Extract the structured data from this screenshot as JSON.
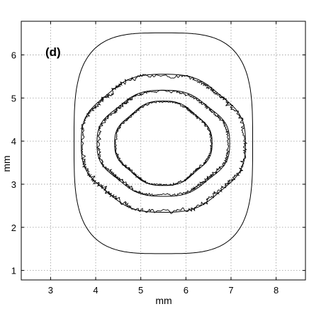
{
  "chart_data": {
    "type": "line",
    "title": "",
    "panel_label": "(d)",
    "xlabel": "mm",
    "ylabel": "mm",
    "xlim": [
      2.35,
      8.65
    ],
    "ylim": [
      0.78,
      6.78
    ],
    "xticks": [
      3,
      4,
      5,
      6,
      7,
      8
    ],
    "yticks": [
      1,
      2,
      3,
      4,
      5,
      6
    ],
    "grid": true,
    "center": [
      5.5,
      3.95
    ],
    "smooth_contours": [
      {
        "id": "smooth-outer",
        "a": 1.98,
        "b": 2.56,
        "n": 3.4,
        "amp": 0.0,
        "freq": 4
      },
      {
        "id": "smooth-2",
        "a": 1.82,
        "b": 1.6,
        "n": 2.8,
        "amp": 0.11,
        "freq": 4
      },
      {
        "id": "smooth-3",
        "a": 1.47,
        "b": 1.23,
        "n": 2.7,
        "amp": 0.12,
        "freq": 4
      },
      {
        "id": "smooth-4",
        "a": 1.08,
        "b": 0.98,
        "n": 2.6,
        "amp": 0.13,
        "freq": 4
      }
    ],
    "rough_contours": [
      {
        "id": "rough-1",
        "a": 1.8,
        "b": 1.58,
        "n": 2.8,
        "amp": 0.11,
        "freq": 4,
        "noise": 0.045
      },
      {
        "id": "rough-2",
        "a": 1.44,
        "b": 1.2,
        "n": 2.7,
        "amp": 0.12,
        "freq": 4,
        "noise": 0.04
      },
      {
        "id": "rough-3",
        "a": 1.06,
        "b": 0.96,
        "n": 2.6,
        "amp": 0.13,
        "freq": 4,
        "noise": 0.035
      }
    ]
  }
}
